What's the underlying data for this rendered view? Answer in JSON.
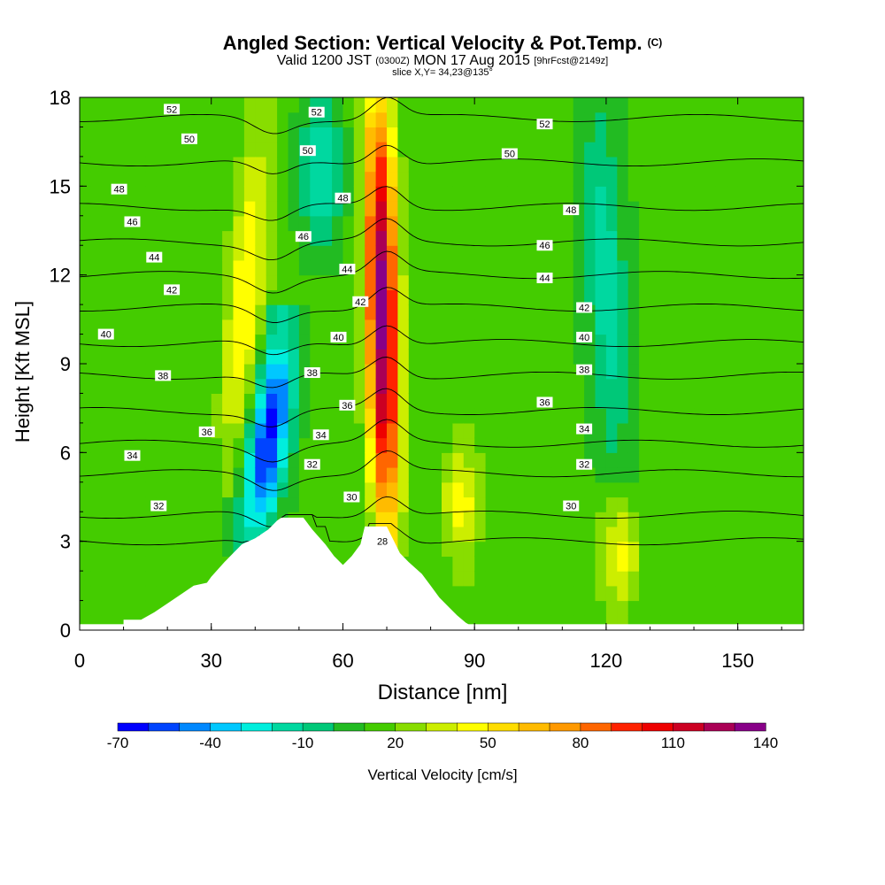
{
  "title": "Angled Section: Vertical Velocity & Pot.Temp.",
  "title_units": "(C)",
  "subtitle_valid": "Valid 1200 JST",
  "subtitle_utc": "(0300Z)",
  "subtitle_date": "MON 17 Aug 2015",
  "subtitle_fcst": "[9hrFcst@2149z]",
  "slice_label": "slice X,Y= 34,23@135°",
  "chart_data": {
    "type": "heatmap",
    "xlabel": "Distance [nm]",
    "ylabel": "Height [Kft MSL]",
    "xlim": [
      0,
      165
    ],
    "ylim": [
      0,
      18
    ],
    "x_ticks": [
      0,
      30,
      60,
      90,
      120,
      150
    ],
    "y_ticks": [
      0,
      3,
      6,
      9,
      12,
      15,
      18
    ],
    "background_color": "#22bb22",
    "updrafts": [
      {
        "x_start": 70,
        "x_end": 68,
        "z_bottom": 3.3,
        "z_top": 18,
        "peak": 135
      },
      {
        "x_start": 35,
        "x_end": 41,
        "z_bottom": 5.5,
        "z_top": 17,
        "peak": 50
      },
      {
        "x_start": 87,
        "x_end": 87,
        "z_bottom": 2.5,
        "z_top": 6.2,
        "peak": 45
      },
      {
        "x_start": 123,
        "x_end": 123,
        "z_bottom": 0.8,
        "z_top": 4.2,
        "peak": 45
      }
    ],
    "downdrafts": [
      {
        "x_start": 40,
        "x_end": 46,
        "z_bottom": 3.3,
        "z_top": 10,
        "peak": -65
      },
      {
        "x_start": 55,
        "x_end": 55,
        "z_bottom": 13,
        "z_top": 18,
        "peak": -20
      },
      {
        "x_start": 122,
        "x_end": 118,
        "z_bottom": 5.5,
        "z_top": 18,
        "peak": -15
      }
    ],
    "terrain_profile": [
      [
        0,
        0
      ],
      [
        10,
        0
      ],
      [
        10,
        0.35
      ],
      [
        14,
        0.35
      ],
      [
        17,
        0.6
      ],
      [
        20,
        0.9
      ],
      [
        23,
        1.2
      ],
      [
        26,
        1.5
      ],
      [
        29,
        1.6
      ],
      [
        30,
        1.8
      ],
      [
        33,
        2.3
      ],
      [
        35,
        2.6
      ],
      [
        37,
        2.9
      ],
      [
        40,
        3.1
      ],
      [
        43,
        3.4
      ],
      [
        45,
        3.7
      ],
      [
        46,
        3.8
      ],
      [
        51,
        3.8
      ],
      [
        53,
        3.4
      ],
      [
        56,
        2.9
      ],
      [
        58,
        2.5
      ],
      [
        60,
        2.2
      ],
      [
        62,
        2.5
      ],
      [
        64,
        2.9
      ],
      [
        65,
        3.5
      ],
      [
        70,
        3.5
      ],
      [
        71,
        3.2
      ],
      [
        73,
        2.6
      ],
      [
        75,
        2.3
      ],
      [
        78,
        1.9
      ],
      [
        80,
        1.5
      ],
      [
        82,
        1.1
      ],
      [
        84,
        0.8
      ],
      [
        86,
        0.5
      ],
      [
        88,
        0.25
      ],
      [
        91,
        0
      ],
      [
        165,
        0
      ]
    ],
    "pot_temp_levels": [
      {
        "value": "28",
        "z": 3.0
      },
      {
        "value": "30",
        "z": 3.9
      },
      {
        "value": "32",
        "z": 5.3
      },
      {
        "value": "34",
        "z": 6.3
      },
      {
        "value": "36",
        "z": 7.4
      },
      {
        "value": "38",
        "z": 8.6
      },
      {
        "value": "40",
        "z": 9.7
      },
      {
        "value": "42",
        "z": 10.9
      },
      {
        "value": "44",
        "z": 12.0
      },
      {
        "value": "46",
        "z": 13.1
      },
      {
        "value": "48",
        "z": 14.3
      },
      {
        "value": "50",
        "z": 15.8
      },
      {
        "value": "52",
        "z": 17.3
      }
    ],
    "contour_labels": [
      {
        "text": "52",
        "x": 21,
        "z": 17.6
      },
      {
        "text": "50",
        "x": 25,
        "z": 16.6
      },
      {
        "text": "48",
        "x": 9,
        "z": 14.9
      },
      {
        "text": "46",
        "x": 12,
        "z": 13.8
      },
      {
        "text": "44",
        "x": 17,
        "z": 12.6
      },
      {
        "text": "42",
        "x": 21,
        "z": 11.5
      },
      {
        "text": "40",
        "x": 6,
        "z": 10.0
      },
      {
        "text": "38",
        "x": 19,
        "z": 8.6
      },
      {
        "text": "36",
        "x": 29,
        "z": 6.7
      },
      {
        "text": "34",
        "x": 12,
        "z": 5.9
      },
      {
        "text": "32",
        "x": 18,
        "z": 4.2
      },
      {
        "text": "52",
        "x": 54,
        "z": 17.5
      },
      {
        "text": "50",
        "x": 52,
        "z": 16.2
      },
      {
        "text": "48",
        "x": 60,
        "z": 14.6
      },
      {
        "text": "46",
        "x": 51,
        "z": 13.3
      },
      {
        "text": "44",
        "x": 61,
        "z": 12.2
      },
      {
        "text": "42",
        "x": 64,
        "z": 11.1
      },
      {
        "text": "40",
        "x": 59,
        "z": 9.9
      },
      {
        "text": "38",
        "x": 53,
        "z": 8.7
      },
      {
        "text": "36",
        "x": 61,
        "z": 7.6
      },
      {
        "text": "34",
        "x": 55,
        "z": 6.6
      },
      {
        "text": "32",
        "x": 53,
        "z": 5.6
      },
      {
        "text": "30",
        "x": 62,
        "z": 4.5
      },
      {
        "text": "28",
        "x": 69,
        "z": 3.0
      },
      {
        "text": "52",
        "x": 106,
        "z": 17.1
      },
      {
        "text": "50",
        "x": 98,
        "z": 16.1
      },
      {
        "text": "48",
        "x": 112,
        "z": 14.2
      },
      {
        "text": "46",
        "x": 106,
        "z": 13.0
      },
      {
        "text": "44",
        "x": 106,
        "z": 11.9
      },
      {
        "text": "42",
        "x": 115,
        "z": 10.9
      },
      {
        "text": "40",
        "x": 115,
        "z": 9.9
      },
      {
        "text": "38",
        "x": 115,
        "z": 8.8
      },
      {
        "text": "36",
        "x": 106,
        "z": 7.7
      },
      {
        "text": "34",
        "x": 115,
        "z": 6.8
      },
      {
        "text": "32",
        "x": 115,
        "z": 5.6
      },
      {
        "text": "30",
        "x": 112,
        "z": 4.2
      }
    ],
    "colorbar": {
      "label": "Vertical Velocity [cm/s]",
      "min": -70,
      "max": 140,
      "tick_labels": [
        "-70",
        "-40",
        "-10",
        "20",
        "50",
        "80",
        "110",
        "140"
      ],
      "tick_values": [
        -70,
        -40,
        -10,
        20,
        50,
        80,
        110,
        140
      ],
      "colors": [
        "#0000ff",
        "#0044ff",
        "#0088ff",
        "#00c8ff",
        "#00eedd",
        "#00d8a0",
        "#00c878",
        "#22bb22",
        "#44cc00",
        "#88dd00",
        "#ccee00",
        "#ffff00",
        "#ffdd00",
        "#ffbb00",
        "#ff9900",
        "#ff6600",
        "#ff2200",
        "#ee0000",
        "#cc0022",
        "#aa0055",
        "#880088"
      ]
    }
  }
}
